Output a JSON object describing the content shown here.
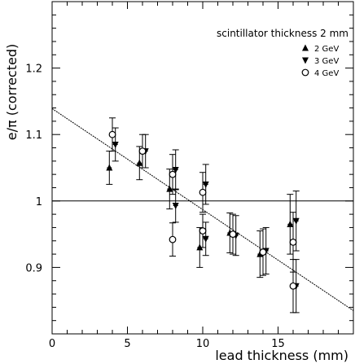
{
  "chart_data": {
    "type": "scatter",
    "xlabel": "lead thickness (mm)",
    "ylabel": "e/π (corrected)",
    "xlim": [
      0,
      20
    ],
    "ylim": [
      0.8,
      1.3
    ],
    "x_ticks": [
      0,
      5,
      10,
      15
    ],
    "x_tick_labels": [
      "0",
      "5",
      "10",
      "15"
    ],
    "y_ticks": [
      0.9,
      1,
      1.1,
      1.2
    ],
    "y_tick_labels": [
      "0.9",
      "1",
      "1.1",
      "1.2"
    ],
    "grid": false,
    "legend_title": "scintillator thickness 2 mm",
    "legend_position": "top-right",
    "reference_line": {
      "y": 1.0
    },
    "fit_line": {
      "x": [
        0,
        20
      ],
      "y": [
        1.139,
        0.835
      ]
    },
    "series": [
      {
        "name": "2 GeV",
        "marker": "triangle-up",
        "x": [
          3.8,
          5.8,
          7.8,
          9.8,
          11.8,
          13.8,
          15.8
        ],
        "y": [
          1.05,
          1.057,
          1.018,
          0.93,
          0.952,
          0.92,
          0.965
        ],
        "yerr": [
          0.025,
          0.025,
          0.03,
          0.03,
          0.03,
          0.035,
          0.045
        ]
      },
      {
        "name": "3 GeV",
        "marker": "triangle-down",
        "x": [
          4.2,
          6.2,
          8.2,
          10.2,
          12.2,
          14.2,
          16.2
        ],
        "y": [
          1.085,
          1.075,
          1.047,
          1.025,
          0.948,
          0.925,
          0.97
        ],
        "yerr": [
          0.025,
          0.025,
          0.03,
          0.03,
          0.03,
          0.035,
          0.045
        ]
      },
      {
        "name": "3 GeV",
        "marker": "triangle-down",
        "x": [
          8.2,
          10.2,
          16.2
        ],
        "y": [
          0.993,
          0.943,
          0.872
        ],
        "yerr": [
          0.025,
          0.025,
          0.04
        ]
      },
      {
        "name": "4 GeV",
        "marker": "open-circle",
        "x": [
          4.0,
          6.0,
          8.0,
          10.0,
          12.0,
          14.0,
          16.0
        ],
        "y": [
          1.1,
          1.075,
          1.04,
          1.013,
          0.95,
          0.923,
          0.938
        ],
        "yerr": [
          0.025,
          0.025,
          0.03,
          0.03,
          0.03,
          0.035,
          0.045
        ]
      },
      {
        "name": "4 GeV",
        "marker": "open-circle",
        "x": [
          8.0,
          10.0,
          16.0
        ],
        "y": [
          0.942,
          0.955,
          0.872
        ],
        "yerr": [
          0.025,
          0.025,
          0.04
        ]
      }
    ]
  }
}
